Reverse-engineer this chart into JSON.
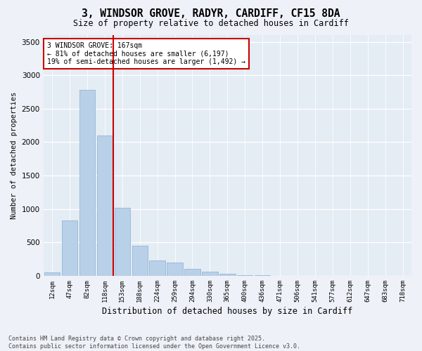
{
  "title_line1": "3, WINDSOR GROVE, RADYR, CARDIFF, CF15 8DA",
  "title_line2": "Size of property relative to detached houses in Cardiff",
  "xlabel": "Distribution of detached houses by size in Cardiff",
  "ylabel": "Number of detached properties",
  "categories": [
    "12sqm",
    "47sqm",
    "82sqm",
    "118sqm",
    "153sqm",
    "188sqm",
    "224sqm",
    "259sqm",
    "294sqm",
    "330sqm",
    "365sqm",
    "400sqm",
    "436sqm",
    "471sqm",
    "506sqm",
    "541sqm",
    "577sqm",
    "612sqm",
    "647sqm",
    "683sqm",
    "718sqm"
  ],
  "values": [
    55,
    830,
    2780,
    2100,
    1020,
    450,
    230,
    200,
    100,
    65,
    30,
    15,
    5,
    2,
    1,
    0,
    0,
    0,
    0,
    0,
    0
  ],
  "bar_color": "#b8d0e8",
  "bar_edge_color": "#8ab0d0",
  "vline_color": "#cc0000",
  "vline_x": 4.5,
  "annotation_text": "3 WINDSOR GROVE: 167sqm\n← 81% of detached houses are smaller (6,197)\n19% of semi-detached houses are larger (1,492) →",
  "annotation_box_color": "#cc0000",
  "ylim": [
    0,
    3600
  ],
  "yticks": [
    0,
    500,
    1000,
    1500,
    2000,
    2500,
    3000,
    3500
  ],
  "footer_line1": "Contains HM Land Registry data © Crown copyright and database right 2025.",
  "footer_line2": "Contains public sector information licensed under the Open Government Licence v3.0.",
  "bg_color": "#eef2f8",
  "plot_bg_color": "#e4ecf4",
  "title_fontsize": 10.5,
  "subtitle_fontsize": 8.5
}
